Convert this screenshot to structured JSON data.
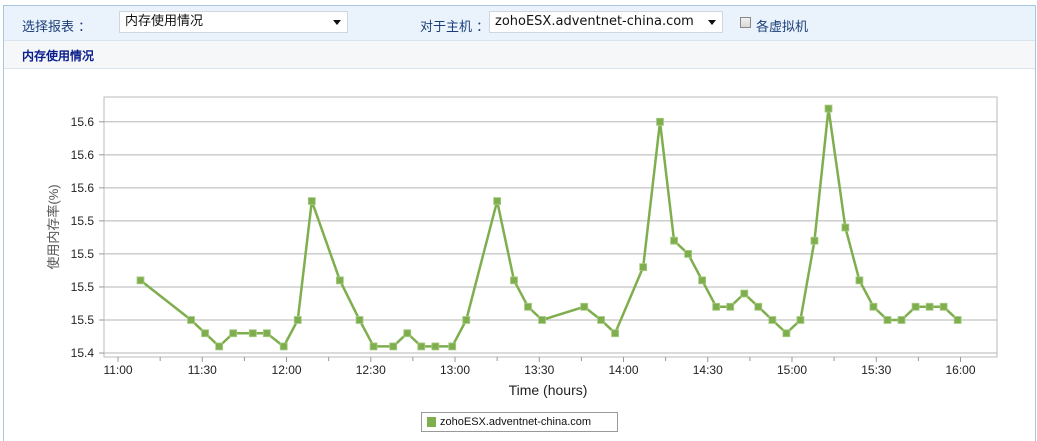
{
  "toolbar": {
    "report_label": "选择报表 ：",
    "report_value": "内存使用情况",
    "host_label": "对于主机 ：",
    "host_value": "zohoESX.adventnet-china.com",
    "vm_checkbox_label": "各虚拟机",
    "vm_checkbox_checked": false
  },
  "section_title": "内存使用情况",
  "chart_data": {
    "type": "line",
    "xlabel": "Time (hours)",
    "ylabel": "使用内存率(%)",
    "x_ticks": [
      "11:00",
      "11:30",
      "12:00",
      "12:30",
      "13:00",
      "13:30",
      "14:00",
      "14:30",
      "15:00",
      "15:30",
      "16:00"
    ],
    "xlim": [
      "10:55",
      "16:13"
    ],
    "y_ticks": [
      {
        "value": 15.45,
        "label": "15.4"
      },
      {
        "value": 15.47,
        "label": "15.5"
      },
      {
        "value": 15.49,
        "label": "15.5"
      },
      {
        "value": 15.51,
        "label": "15.5"
      },
      {
        "value": 15.53,
        "label": "15.5"
      },
      {
        "value": 15.55,
        "label": "15.6"
      },
      {
        "value": 15.57,
        "label": "15.6"
      },
      {
        "value": 15.59,
        "label": "15.6"
      }
    ],
    "ylim": [
      15.4476,
      15.605
    ],
    "grid": "horizontal",
    "legend_position": "bottom",
    "series": [
      {
        "name": "zohoESX.adventnet-china.com",
        "color": "#7fae4e",
        "x": [
          "11:08",
          "11:26",
          "11:31",
          "11:36",
          "11:41",
          "11:48",
          "11:53",
          "11:59",
          "12:04",
          "12:09",
          "12:19",
          "12:26",
          "12:31",
          "12:38",
          "12:43",
          "12:48",
          "12:53",
          "12:59",
          "13:04",
          "13:15",
          "13:21",
          "13:26",
          "13:31",
          "13:46",
          "13:52",
          "13:57",
          "14:07",
          "14:13",
          "14:18",
          "14:23",
          "14:28",
          "14:33",
          "14:38",
          "14:43",
          "14:48",
          "14:53",
          "14:58",
          "15:03",
          "15:08",
          "15:13",
          "15:19",
          "15:24",
          "15:29",
          "15:34",
          "15:39",
          "15:44",
          "15:49",
          "15:54",
          "15:59"
        ],
        "y": [
          15.494,
          15.47,
          15.462,
          15.454,
          15.462,
          15.462,
          15.462,
          15.454,
          15.47,
          15.542,
          15.494,
          15.47,
          15.454,
          15.454,
          15.462,
          15.454,
          15.454,
          15.454,
          15.47,
          15.542,
          15.494,
          15.478,
          15.47,
          15.478,
          15.47,
          15.462,
          15.502,
          15.59,
          15.518,
          15.51,
          15.494,
          15.478,
          15.478,
          15.486,
          15.478,
          15.47,
          15.462,
          15.47,
          15.518,
          15.598,
          15.526,
          15.494,
          15.478,
          15.47,
          15.47,
          15.478,
          15.478,
          15.478,
          15.47
        ]
      }
    ]
  }
}
